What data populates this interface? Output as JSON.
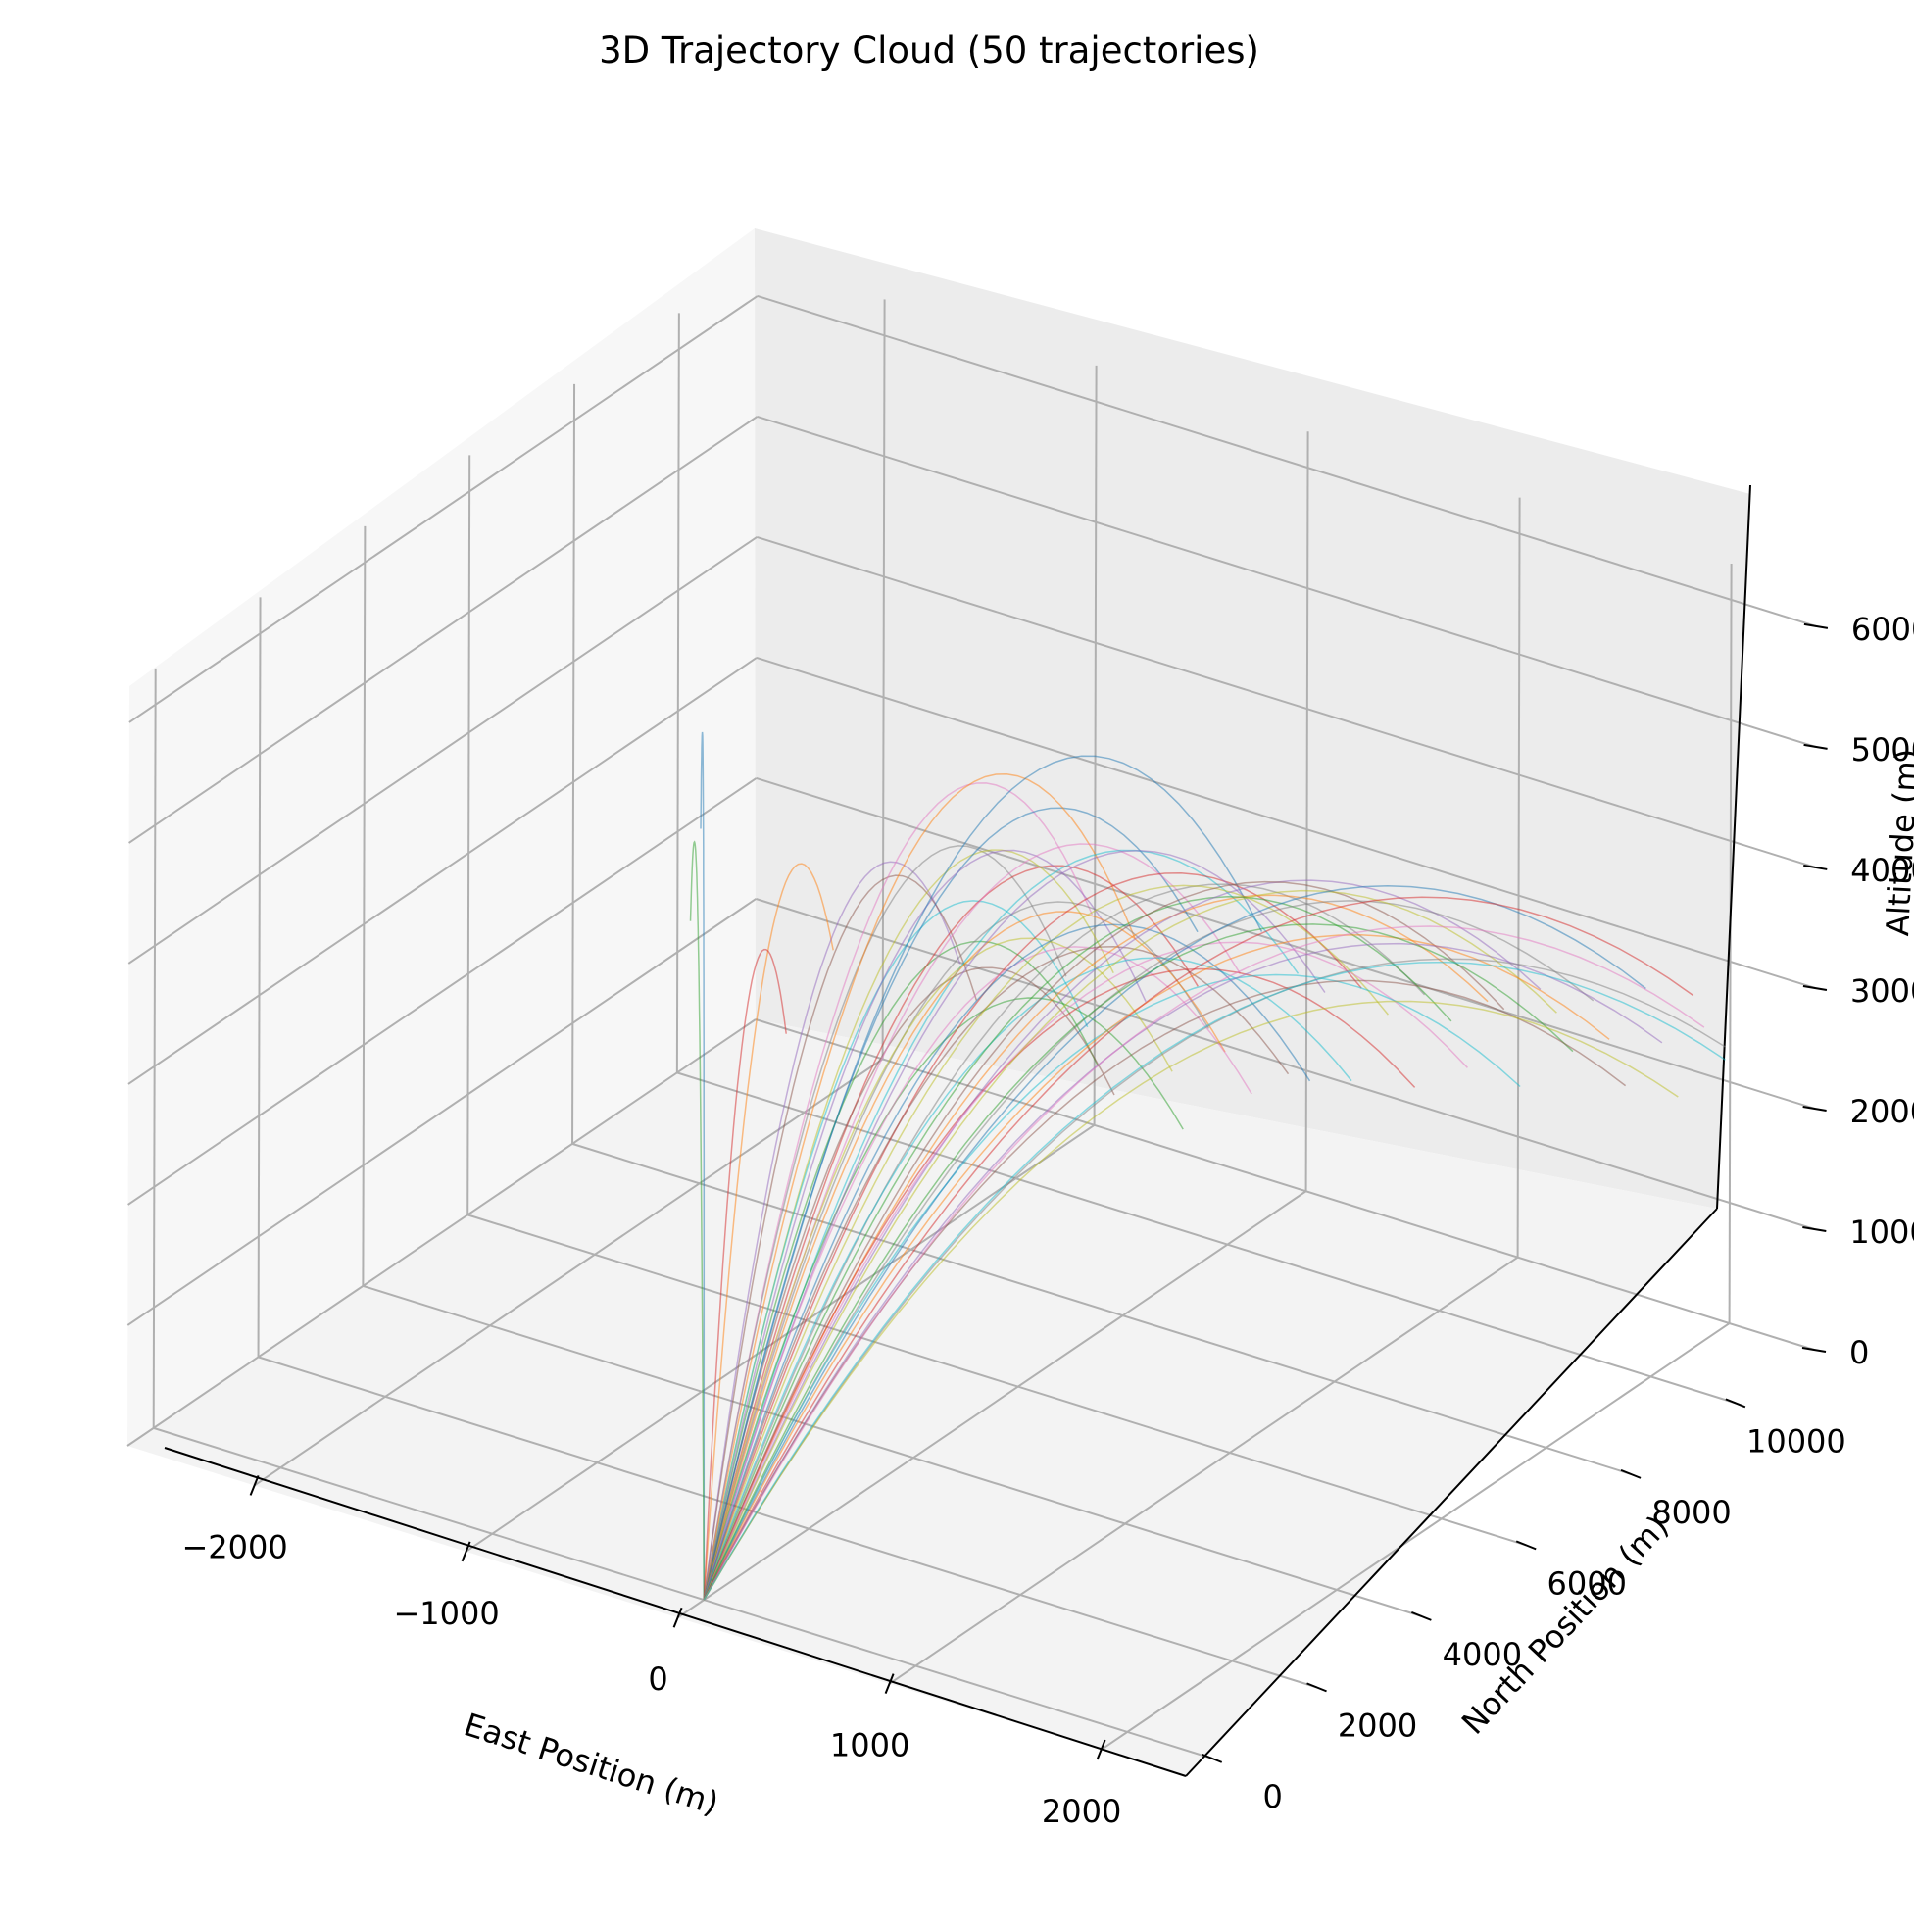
{
  "chart_data": {
    "type": "line3d",
    "title": "3D Trajectory Cloud (50 trajectories)",
    "xlabel": "East Position (m)",
    "ylabel": "North Position (m)",
    "zlabel": "Altitude (m)",
    "xlim": [
      -2600,
      2400
    ],
    "ylim": [
      -500,
      11500
    ],
    "zlim": [
      0,
      6300
    ],
    "x_ticks": [
      -2000,
      -1000,
      0,
      1000,
      2000
    ],
    "x_tick_labels": [
      "−2000",
      "−1000",
      "0",
      "1000",
      "2000"
    ],
    "y_ticks": [
      0,
      2000,
      4000,
      6000,
      8000,
      10000
    ],
    "y_tick_labels": [
      "0",
      "2000",
      "4000",
      "6000",
      "8000",
      "10000"
    ],
    "z_ticks": [
      0,
      1000,
      2000,
      3000,
      4000,
      5000,
      6000
    ],
    "z_tick_labels": [
      "0",
      "1000",
      "2000",
      "3000",
      "4000",
      "5000",
      "6000"
    ],
    "grid": true,
    "colors": [
      "#1f77b4",
      "#ff7f0e",
      "#2ca02c",
      "#d62728",
      "#9467bd",
      "#8c564b",
      "#e377c2",
      "#7f7f7f",
      "#bcbd22",
      "#17becf"
    ],
    "trajectories": [
      {
        "east": -1850,
        "north": 7400,
        "apogee": 5000
      },
      {
        "east": -1100,
        "north": 6900,
        "apogee": 4300
      },
      {
        "east": -1700,
        "north": 6600,
        "apogee": 4300
      },
      {
        "east": -1000,
        "north": 5600,
        "apogee": 3900
      },
      {
        "east": -550,
        "north": 7100,
        "apogee": 4500
      },
      {
        "east": -250,
        "north": 6200,
        "apogee": 4700
      },
      {
        "east": -100,
        "north": 7800,
        "apogee": 5200
      },
      {
        "east": 0,
        "north": 6900,
        "apogee": 4900
      },
      {
        "east": 100,
        "north": 7400,
        "apogee": 4800
      },
      {
        "east": 200,
        "north": 6500,
        "apogee": 4600
      },
      {
        "east": 250,
        "north": 8400,
        "apogee": 5000
      },
      {
        "east": 300,
        "north": 7000,
        "apogee": 5600
      },
      {
        "east": 350,
        "north": 6100,
        "apogee": 4400
      },
      {
        "east": 400,
        "north": 7800,
        "apogee": 4700
      },
      {
        "east": 450,
        "north": 6600,
        "apogee": 5100
      },
      {
        "east": 500,
        "north": 5800,
        "apogee": 4300
      },
      {
        "east": 550,
        "north": 8000,
        "apogee": 4900
      },
      {
        "east": 600,
        "north": 7200,
        "apogee": 4600
      },
      {
        "east": 650,
        "north": 6300,
        "apogee": 4500
      },
      {
        "east": 700,
        "north": 8500,
        "apogee": 4800
      },
      {
        "east": 750,
        "north": 7600,
        "apogee": 5800
      },
      {
        "east": 800,
        "north": 6700,
        "apogee": 4700
      },
      {
        "east": 850,
        "north": 5700,
        "apogee": 4200
      },
      {
        "east": 900,
        "north": 8900,
        "apogee": 4600
      },
      {
        "east": 950,
        "north": 8000,
        "apogee": 5000
      },
      {
        "east": 1000,
        "north": 7100,
        "apogee": 4400
      },
      {
        "east": 1050,
        "north": 6200,
        "apogee": 4600
      },
      {
        "east": 1100,
        "north": 9300,
        "apogee": 4500
      },
      {
        "east": 1150,
        "north": 8400,
        "apogee": 4700
      },
      {
        "east": 1200,
        "north": 7500,
        "apogee": 4300
      },
      {
        "east": 1250,
        "north": 6500,
        "apogee": 4800
      },
      {
        "east": 1300,
        "north": 9700,
        "apogee": 4400
      },
      {
        "east": 1350,
        "north": 8800,
        "apogee": 4600
      },
      {
        "east": 1400,
        "north": 7900,
        "apogee": 4200
      },
      {
        "east": 1450,
        "north": 10100,
        "apogee": 4500
      },
      {
        "east": 1500,
        "north": 9200,
        "apogee": 4700
      },
      {
        "east": 1550,
        "north": 8300,
        "apogee": 4400
      },
      {
        "east": 1600,
        "north": 10500,
        "apogee": 4300
      },
      {
        "east": 1650,
        "north": 9600,
        "apogee": 4600
      },
      {
        "east": 1700,
        "north": 8700,
        "apogee": 4100
      },
      {
        "east": 1750,
        "north": 10900,
        "apogee": 4400
      },
      {
        "east": 1800,
        "north": 10000,
        "apogee": 4200
      },
      {
        "east": 1850,
        "north": 9100,
        "apogee": 4500
      },
      {
        "east": 1900,
        "north": 11200,
        "apogee": 4300
      },
      {
        "east": 1950,
        "north": 10400,
        "apogee": 4100
      },
      {
        "east": 2000,
        "north": 9500,
        "apogee": 4000
      },
      {
        "east": 2050,
        "north": 10800,
        "apogee": 4200
      },
      {
        "east": 2100,
        "north": 11000,
        "apogee": 3900
      },
      {
        "east": 2150,
        "north": 9900,
        "apogee": 3800
      },
      {
        "east": 2200,
        "north": 10600,
        "apogee": 4000
      }
    ]
  }
}
